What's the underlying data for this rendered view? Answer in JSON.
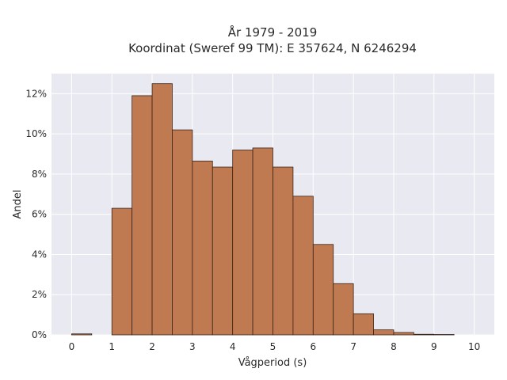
{
  "chart_data": {
    "type": "bar",
    "subtype": "histogram",
    "title": "År 1979 - 2019",
    "subtitle": "Koordinat (Sweref 99 TM): E 357624, N 6246294",
    "xlabel": "Vågperiod (s)",
    "ylabel": "Andel",
    "xlim": [
      -0.5,
      10.5
    ],
    "ylim": [
      0,
      13
    ],
    "x_ticks": [
      0,
      1,
      2,
      3,
      4,
      5,
      6,
      7,
      8,
      9,
      10
    ],
    "x_tick_labels": [
      "0",
      "1",
      "2",
      "3",
      "4",
      "5",
      "6",
      "7",
      "8",
      "9",
      "10"
    ],
    "y_ticks": [
      0,
      2,
      4,
      6,
      8,
      10,
      12
    ],
    "y_tick_labels": [
      "0%",
      "2%",
      "4%",
      "6%",
      "8%",
      "10%",
      "12%"
    ],
    "bin_width": 0.5,
    "bins": [
      {
        "start": 0.0,
        "value": 0.05
      },
      {
        "start": 0.5,
        "value": 0.0
      },
      {
        "start": 1.0,
        "value": 6.3
      },
      {
        "start": 1.5,
        "value": 11.9
      },
      {
        "start": 2.0,
        "value": 12.5
      },
      {
        "start": 2.5,
        "value": 10.2
      },
      {
        "start": 3.0,
        "value": 8.65
      },
      {
        "start": 3.5,
        "value": 8.35
      },
      {
        "start": 4.0,
        "value": 9.2
      },
      {
        "start": 4.5,
        "value": 9.3
      },
      {
        "start": 5.0,
        "value": 8.35
      },
      {
        "start": 5.5,
        "value": 6.9
      },
      {
        "start": 6.0,
        "value": 4.5
      },
      {
        "start": 6.5,
        "value": 2.55
      },
      {
        "start": 7.0,
        "value": 1.05
      },
      {
        "start": 7.5,
        "value": 0.25
      },
      {
        "start": 8.0,
        "value": 0.12
      },
      {
        "start": 8.5,
        "value": 0.03
      },
      {
        "start": 9.0,
        "value": 0.02
      },
      {
        "start": 9.5,
        "value": 0.0
      }
    ],
    "grid": true,
    "colors": {
      "bar_fill": "#c07a52",
      "bar_edge": "#3b2418",
      "plot_background": "#e9e9f1",
      "grid": "#ffffff"
    }
  }
}
